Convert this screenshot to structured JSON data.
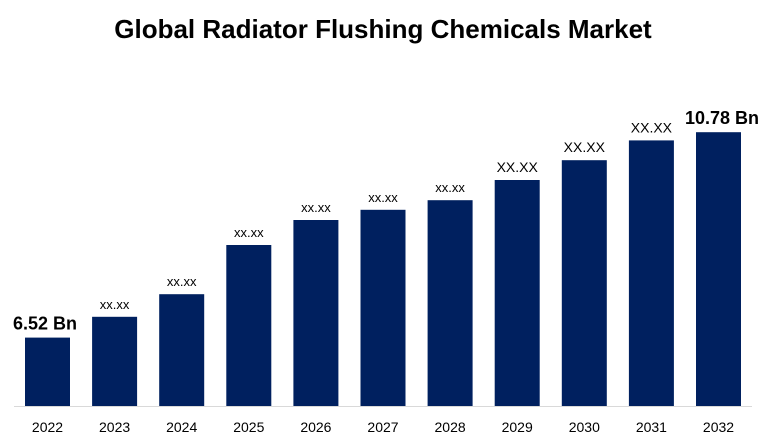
{
  "chart_data": {
    "type": "bar",
    "title": "Global Radiator Flushing Chemicals Market",
    "categories": [
      "2022",
      "2023",
      "2024",
      "2025",
      "2026",
      "2027",
      "2028",
      "2029",
      "2030",
      "2031",
      "2032"
    ],
    "values": [
      6.52,
      6.95,
      7.42,
      8.44,
      8.96,
      9.17,
      9.37,
      9.79,
      10.2,
      10.61,
      10.78
    ],
    "data_labels": [
      "6.52 Bn",
      "xx.xx",
      "xx.xx",
      "xx.xx",
      "xx.xx",
      "xx.xx",
      "xx.xx",
      "XX.XX",
      "XX.XX",
      "XX.XX",
      "10.78 Bn"
    ],
    "ylim": [
      5.1,
      11.2
    ],
    "grid": false,
    "bar_color": "#00205f",
    "axis_color": "#d9d9d9"
  }
}
